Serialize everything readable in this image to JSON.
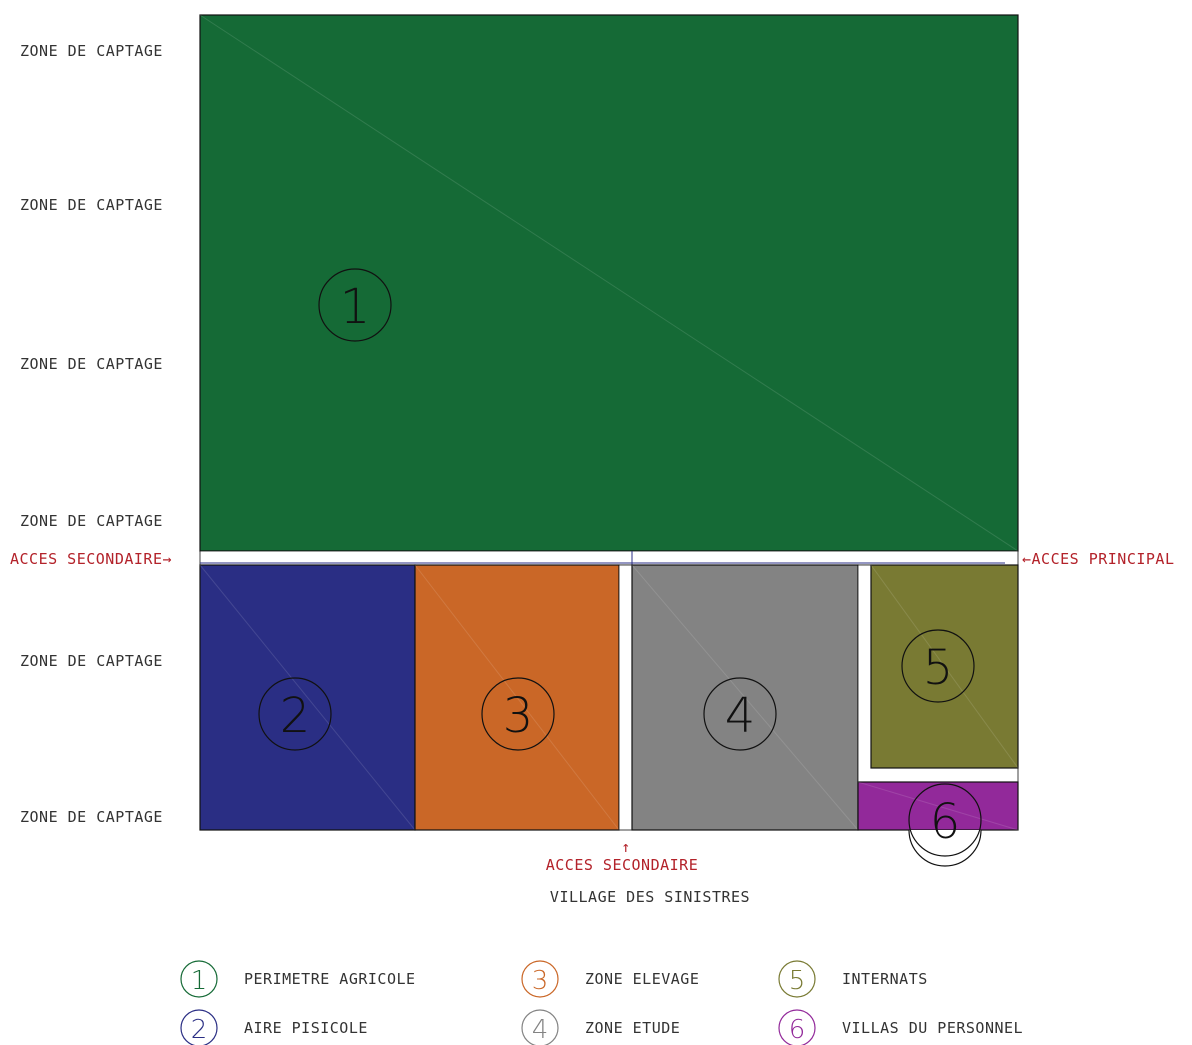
{
  "colors": {
    "zone1": "#156a36",
    "zone2": "#2a2e84",
    "zone3": "#ca6727",
    "zone4": "#838383",
    "zone5": "#797a33",
    "zone6": "#92299a",
    "access_text": "#b3222a",
    "label_text": "#333333"
  },
  "left_labels": [
    "ZONE DE CAPTAGE",
    "ZONE DE CAPTAGE",
    "ZONE DE CAPTAGE",
    "ZONE DE CAPTAGE",
    "ZONE DE CAPTAGE",
    "ZONE DE CAPTAGE"
  ],
  "access": {
    "secondary_left": "ACCES SECONDAIRE→",
    "principal_right": "←ACCES PRINCIPAL",
    "secondary_bottom_arrow": "↑",
    "secondary_bottom": "ACCES SECONDAIRE"
  },
  "below_label": "VILLAGE DES SINISTRES",
  "zones": [
    {
      "number": "1",
      "name": "PERIMETRE AGRICOLE"
    },
    {
      "number": "2",
      "name": "AIRE PISICOLE"
    },
    {
      "number": "3",
      "name": "ZONE ELEVAGE"
    },
    {
      "number": "4",
      "name": "ZONE ETUDE"
    },
    {
      "number": "5",
      "name": "INTERNATS"
    },
    {
      "number": "6",
      "name": "VILLAS DU PERSONNEL"
    }
  ]
}
